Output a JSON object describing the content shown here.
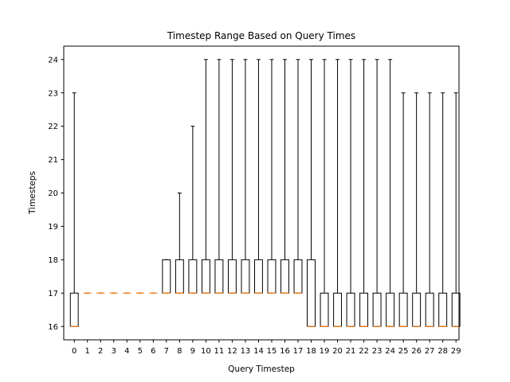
{
  "chart_data": {
    "type": "boxplot",
    "title": "Timestep Range Based on Query Times",
    "xlabel": "Query Timestep",
    "ylabel": "Timesteps",
    "ylim": [
      15.6,
      24.4
    ],
    "yticks": [
      16,
      17,
      18,
      19,
      20,
      21,
      22,
      23,
      24
    ],
    "grid": false,
    "colors": {
      "box": "#000000",
      "median": "#ff7f0e",
      "background": "#ffffff"
    },
    "categories": [
      "0",
      "1",
      "2",
      "3",
      "4",
      "5",
      "6",
      "7",
      "8",
      "9",
      "10",
      "11",
      "12",
      "13",
      "14",
      "15",
      "16",
      "17",
      "18",
      "19",
      "20",
      "21",
      "22",
      "23",
      "24",
      "25",
      "26",
      "27",
      "28",
      "29"
    ],
    "boxes": [
      {
        "whislo": 16,
        "q1": 16,
        "med": 16,
        "q3": 17,
        "whishi": 23
      },
      {
        "whislo": 17,
        "q1": 17,
        "med": 17,
        "q3": 17,
        "whishi": 17
      },
      {
        "whislo": 17,
        "q1": 17,
        "med": 17,
        "q3": 17,
        "whishi": 17
      },
      {
        "whislo": 17,
        "q1": 17,
        "med": 17,
        "q3": 17,
        "whishi": 17
      },
      {
        "whislo": 17,
        "q1": 17,
        "med": 17,
        "q3": 17,
        "whishi": 17
      },
      {
        "whislo": 17,
        "q1": 17,
        "med": 17,
        "q3": 17,
        "whishi": 17
      },
      {
        "whislo": 17,
        "q1": 17,
        "med": 17,
        "q3": 17,
        "whishi": 17
      },
      {
        "whislo": 17,
        "q1": 17,
        "med": 17,
        "q3": 18,
        "whishi": 18
      },
      {
        "whislo": 17,
        "q1": 17,
        "med": 17,
        "q3": 18,
        "whishi": 20
      },
      {
        "whislo": 17,
        "q1": 17,
        "med": 17,
        "q3": 18,
        "whishi": 22
      },
      {
        "whislo": 17,
        "q1": 17,
        "med": 17,
        "q3": 18,
        "whishi": 24
      },
      {
        "whislo": 17,
        "q1": 17,
        "med": 17,
        "q3": 18,
        "whishi": 24
      },
      {
        "whislo": 17,
        "q1": 17,
        "med": 17,
        "q3": 18,
        "whishi": 24
      },
      {
        "whislo": 17,
        "q1": 17,
        "med": 17,
        "q3": 18,
        "whishi": 24
      },
      {
        "whislo": 17,
        "q1": 17,
        "med": 17,
        "q3": 18,
        "whishi": 24
      },
      {
        "whislo": 17,
        "q1": 17,
        "med": 17,
        "q3": 18,
        "whishi": 24
      },
      {
        "whislo": 17,
        "q1": 17,
        "med": 17,
        "q3": 18,
        "whishi": 24
      },
      {
        "whislo": 17,
        "q1": 17,
        "med": 17,
        "q3": 18,
        "whishi": 24
      },
      {
        "whislo": 16,
        "q1": 16,
        "med": 16,
        "q3": 18,
        "whishi": 24
      },
      {
        "whislo": 16,
        "q1": 16,
        "med": 16,
        "q3": 17,
        "whishi": 24
      },
      {
        "whislo": 16,
        "q1": 16,
        "med": 16,
        "q3": 17,
        "whishi": 24
      },
      {
        "whislo": 16,
        "q1": 16,
        "med": 16,
        "q3": 17,
        "whishi": 24
      },
      {
        "whislo": 16,
        "q1": 16,
        "med": 16,
        "q3": 17,
        "whishi": 24
      },
      {
        "whislo": 16,
        "q1": 16,
        "med": 16,
        "q3": 17,
        "whishi": 24
      },
      {
        "whislo": 16,
        "q1": 16,
        "med": 16,
        "q3": 17,
        "whishi": 24
      },
      {
        "whislo": 16,
        "q1": 16,
        "med": 16,
        "q3": 17,
        "whishi": 23
      },
      {
        "whislo": 16,
        "q1": 16,
        "med": 16,
        "q3": 17,
        "whishi": 23
      },
      {
        "whislo": 16,
        "q1": 16,
        "med": 16,
        "q3": 17,
        "whishi": 23
      },
      {
        "whislo": 16,
        "q1": 16,
        "med": 16,
        "q3": 17,
        "whishi": 23
      },
      {
        "whislo": 16,
        "q1": 16,
        "med": 16,
        "q3": 17,
        "whishi": 23
      }
    ]
  }
}
